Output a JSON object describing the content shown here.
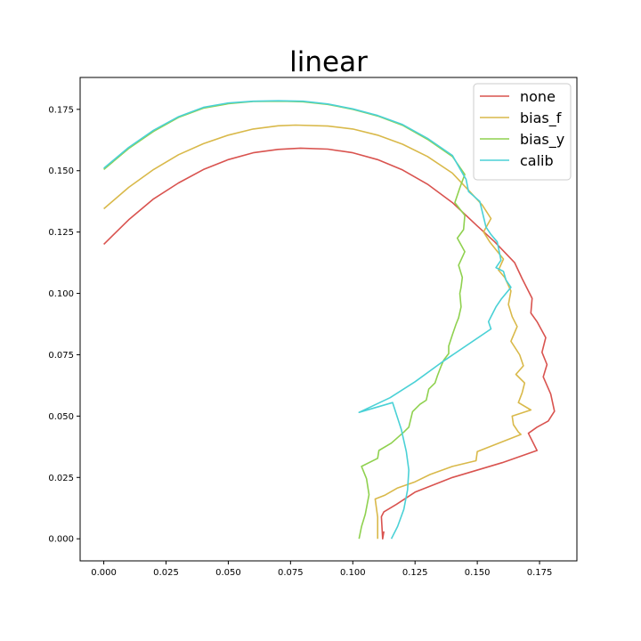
{
  "chart_data": {
    "type": "line",
    "title": "linear",
    "xlabel": "",
    "ylabel": "",
    "xlim": [
      -0.0095,
      0.19
    ],
    "ylim": [
      -0.009,
      0.188
    ],
    "xticks": [
      0.0,
      0.025,
      0.05,
      0.075,
      0.1,
      0.125,
      0.15,
      0.175
    ],
    "xtick_labels": [
      "0.000",
      "0.025",
      "0.050",
      "0.075",
      "0.100",
      "0.125",
      "0.150",
      "0.175"
    ],
    "yticks": [
      0.0,
      0.025,
      0.05,
      0.075,
      0.1,
      0.125,
      0.15,
      0.175
    ],
    "ytick_labels": [
      "0.000",
      "0.025",
      "0.050",
      "0.075",
      "0.100",
      "0.125",
      "0.150",
      "0.175"
    ],
    "grid": false,
    "legend_position": "top-right",
    "series": [
      {
        "name": "none",
        "color": "#d9534f",
        "points": [
          [
            0.0,
            0.12
          ],
          [
            0.01,
            0.13
          ],
          [
            0.02,
            0.1385
          ],
          [
            0.03,
            0.145
          ],
          [
            0.04,
            0.1505
          ],
          [
            0.05,
            0.1545
          ],
          [
            0.06,
            0.1573
          ],
          [
            0.07,
            0.1587
          ],
          [
            0.079,
            0.1592
          ],
          [
            0.09,
            0.1588
          ],
          [
            0.1,
            0.1573
          ],
          [
            0.11,
            0.1545
          ],
          [
            0.12,
            0.1503
          ],
          [
            0.13,
            0.1445
          ],
          [
            0.14,
            0.137
          ],
          [
            0.15,
            0.1275
          ],
          [
            0.157,
            0.121
          ],
          [
            0.165,
            0.1125
          ],
          [
            0.168,
            0.106
          ],
          [
            0.172,
            0.098
          ],
          [
            0.1715,
            0.092
          ],
          [
            0.174,
            0.0885
          ],
          [
            0.1775,
            0.082
          ],
          [
            0.176,
            0.076
          ],
          [
            0.178,
            0.071
          ],
          [
            0.1765,
            0.066
          ],
          [
            0.1795,
            0.059
          ],
          [
            0.181,
            0.052
          ],
          [
            0.1785,
            0.048
          ],
          [
            0.174,
            0.0455
          ],
          [
            0.1705,
            0.043
          ],
          [
            0.174,
            0.036
          ],
          [
            0.16,
            0.031
          ],
          [
            0.14,
            0.025
          ],
          [
            0.125,
            0.019
          ],
          [
            0.1175,
            0.014
          ],
          [
            0.1125,
            0.011
          ],
          [
            0.1115,
            0.009
          ],
          [
            0.112,
            0.0
          ],
          [
            0.1125,
            0.003
          ]
        ]
      },
      {
        "name": "bias_f",
        "color": "#d9b94a",
        "points": [
          [
            0.0,
            0.1345
          ],
          [
            0.01,
            0.1432
          ],
          [
            0.02,
            0.1505
          ],
          [
            0.03,
            0.1565
          ],
          [
            0.04,
            0.161
          ],
          [
            0.05,
            0.1645
          ],
          [
            0.06,
            0.167
          ],
          [
            0.07,
            0.1683
          ],
          [
            0.077,
            0.1686
          ],
          [
            0.09,
            0.1682
          ],
          [
            0.1,
            0.167
          ],
          [
            0.11,
            0.1645
          ],
          [
            0.12,
            0.1608
          ],
          [
            0.13,
            0.1558
          ],
          [
            0.14,
            0.149
          ],
          [
            0.147,
            0.1415
          ],
          [
            0.152,
            0.136
          ],
          [
            0.1555,
            0.1305
          ],
          [
            0.1525,
            0.125
          ],
          [
            0.155,
            0.121
          ],
          [
            0.1605,
            0.114
          ],
          [
            0.1585,
            0.1095
          ],
          [
            0.161,
            0.1065
          ],
          [
            0.1635,
            0.101
          ],
          [
            0.1625,
            0.0955
          ],
          [
            0.164,
            0.0905
          ],
          [
            0.166,
            0.0865
          ],
          [
            0.1635,
            0.0805
          ],
          [
            0.167,
            0.075
          ],
          [
            0.1685,
            0.0705
          ],
          [
            0.1655,
            0.067
          ],
          [
            0.169,
            0.0635
          ],
          [
            0.168,
            0.0595
          ],
          [
            0.1665,
            0.0555
          ],
          [
            0.1715,
            0.0525
          ],
          [
            0.164,
            0.05
          ],
          [
            0.1645,
            0.0465
          ],
          [
            0.1665,
            0.0435
          ],
          [
            0.1675,
            0.0425
          ],
          [
            0.15,
            0.0355
          ],
          [
            0.1495,
            0.0318
          ],
          [
            0.14,
            0.0295
          ],
          [
            0.131,
            0.0262
          ],
          [
            0.125,
            0.0232
          ],
          [
            0.118,
            0.0207
          ],
          [
            0.113,
            0.0178
          ],
          [
            0.109,
            0.0162
          ],
          [
            0.11,
            0.0088
          ],
          [
            0.11,
            0.0
          ]
        ]
      },
      {
        "name": "bias_y",
        "color": "#8fd14f",
        "points": [
          [
            0.0,
            0.1505
          ],
          [
            0.01,
            0.159
          ],
          [
            0.02,
            0.166
          ],
          [
            0.03,
            0.1717
          ],
          [
            0.04,
            0.1755
          ],
          [
            0.05,
            0.1773
          ],
          [
            0.06,
            0.1782
          ],
          [
            0.072,
            0.1783
          ],
          [
            0.08,
            0.1781
          ],
          [
            0.09,
            0.177
          ],
          [
            0.1,
            0.175
          ],
          [
            0.11,
            0.1723
          ],
          [
            0.12,
            0.1685
          ],
          [
            0.13,
            0.1628
          ],
          [
            0.14,
            0.1558
          ],
          [
            0.145,
            0.1485
          ],
          [
            0.143,
            0.143
          ],
          [
            0.141,
            0.137
          ],
          [
            0.145,
            0.1318
          ],
          [
            0.1445,
            0.126
          ],
          [
            0.142,
            0.1225
          ],
          [
            0.145,
            0.117
          ],
          [
            0.1425,
            0.1115
          ],
          [
            0.144,
            0.1065
          ],
          [
            0.1435,
            0.1025
          ],
          [
            0.143,
            0.1
          ],
          [
            0.1435,
            0.0945
          ],
          [
            0.1425,
            0.09
          ],
          [
            0.1415,
            0.0875
          ],
          [
            0.14,
            0.0832
          ],
          [
            0.1385,
            0.0785
          ],
          [
            0.1385,
            0.0755
          ],
          [
            0.1365,
            0.0728
          ],
          [
            0.1355,
            0.0705
          ],
          [
            0.134,
            0.0665
          ],
          [
            0.133,
            0.0635
          ],
          [
            0.1305,
            0.061
          ],
          [
            0.1295,
            0.0565
          ],
          [
            0.127,
            0.0548
          ],
          [
            0.124,
            0.0518
          ],
          [
            0.1225,
            0.0455
          ],
          [
            0.1205,
            0.0435
          ],
          [
            0.1155,
            0.039
          ],
          [
            0.1105,
            0.036
          ],
          [
            0.11,
            0.0328
          ],
          [
            0.1035,
            0.0295
          ],
          [
            0.1055,
            0.0245
          ],
          [
            0.1065,
            0.018
          ],
          [
            0.105,
            0.01
          ],
          [
            0.1035,
            0.005
          ],
          [
            0.1025,
            0.0
          ]
        ]
      },
      {
        "name": "calib",
        "color": "#4ad1d6",
        "points": [
          [
            0.0,
            0.151
          ],
          [
            0.01,
            0.1595
          ],
          [
            0.02,
            0.1665
          ],
          [
            0.03,
            0.172
          ],
          [
            0.04,
            0.1758
          ],
          [
            0.05,
            0.1776
          ],
          [
            0.06,
            0.1783
          ],
          [
            0.07,
            0.1785
          ],
          [
            0.08,
            0.1783
          ],
          [
            0.09,
            0.1772
          ],
          [
            0.1,
            0.1752
          ],
          [
            0.11,
            0.1725
          ],
          [
            0.12,
            0.1688
          ],
          [
            0.13,
            0.1632
          ],
          [
            0.14,
            0.1562
          ],
          [
            0.1445,
            0.1482
          ],
          [
            0.1455,
            0.1465
          ],
          [
            0.1465,
            0.1415
          ],
          [
            0.151,
            0.1375
          ],
          [
            0.1535,
            0.127
          ],
          [
            0.1555,
            0.124
          ],
          [
            0.158,
            0.121
          ],
          [
            0.1595,
            0.1135
          ],
          [
            0.1575,
            0.1105
          ],
          [
            0.1605,
            0.109
          ],
          [
            0.1615,
            0.1055
          ],
          [
            0.1635,
            0.1025
          ],
          [
            0.1595,
            0.0975
          ],
          [
            0.1575,
            0.0945
          ],
          [
            0.1555,
            0.0905
          ],
          [
            0.1545,
            0.0885
          ],
          [
            0.1555,
            0.0855
          ],
          [
            0.1365,
            0.0725
          ],
          [
            0.125,
            0.064
          ],
          [
            0.115,
            0.0575
          ],
          [
            0.1025,
            0.0515
          ],
          [
            0.116,
            0.0555
          ],
          [
            0.1195,
            0.0445
          ],
          [
            0.1215,
            0.0355
          ],
          [
            0.1225,
            0.028
          ],
          [
            0.122,
            0.02
          ],
          [
            0.1205,
            0.012
          ],
          [
            0.118,
            0.005
          ],
          [
            0.1155,
            0.0
          ]
        ]
      }
    ]
  }
}
